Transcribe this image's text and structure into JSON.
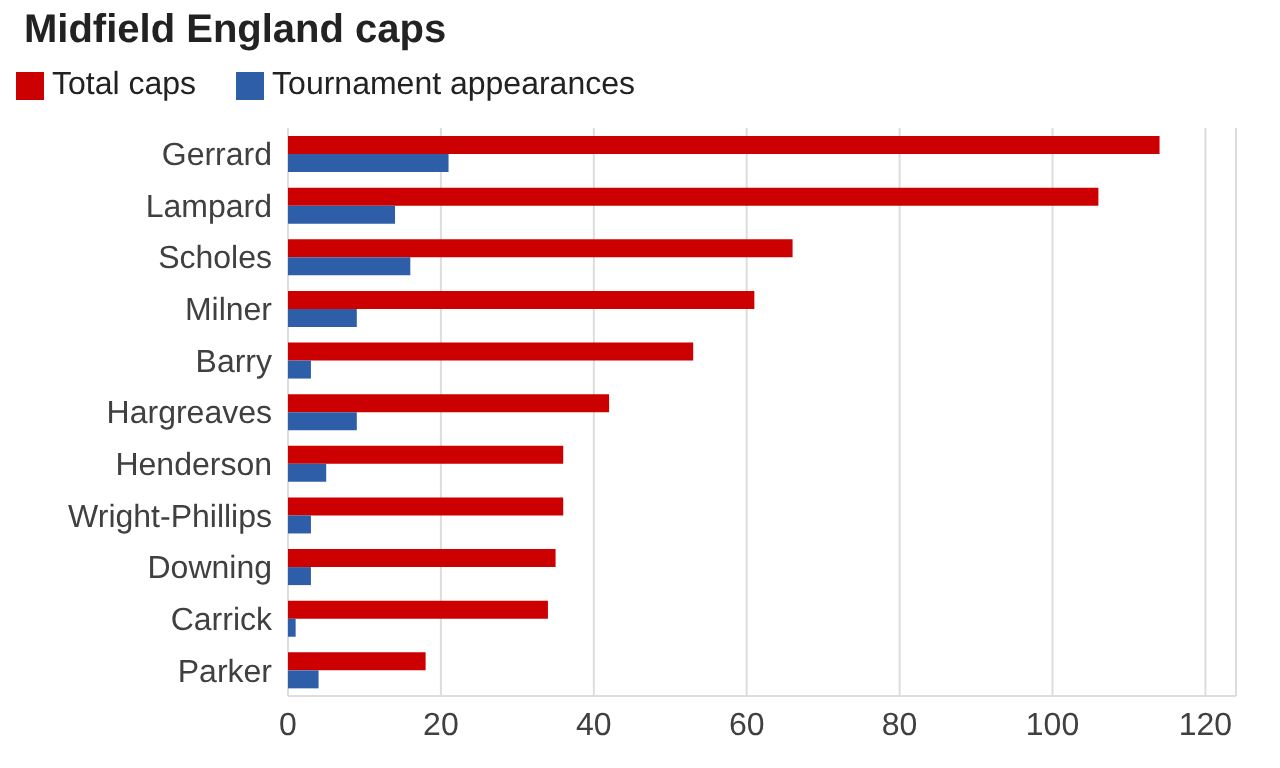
{
  "chart_data": {
    "type": "bar",
    "orientation": "horizontal",
    "title": "Midfield England caps",
    "categories": [
      "Gerrard",
      "Lampard",
      "Scholes",
      "Milner",
      "Barry",
      "Hargreaves",
      "Henderson",
      "Wright-Phillips",
      "Downing",
      "Carrick",
      "Parker"
    ],
    "series": [
      {
        "name": "Total caps",
        "color": "#cc0000",
        "values": [
          114,
          106,
          66,
          61,
          53,
          42,
          36,
          36,
          35,
          34,
          18
        ]
      },
      {
        "name": "Tournament appearances",
        "color": "#2e5ea8",
        "values": [
          21,
          14,
          16,
          9,
          3,
          9,
          5,
          3,
          3,
          1,
          4
        ]
      }
    ],
    "xlim": [
      0,
      124
    ],
    "xticks": [
      0,
      20,
      40,
      60,
      80,
      100,
      120
    ],
    "grid": "x",
    "legend": "top left"
  }
}
